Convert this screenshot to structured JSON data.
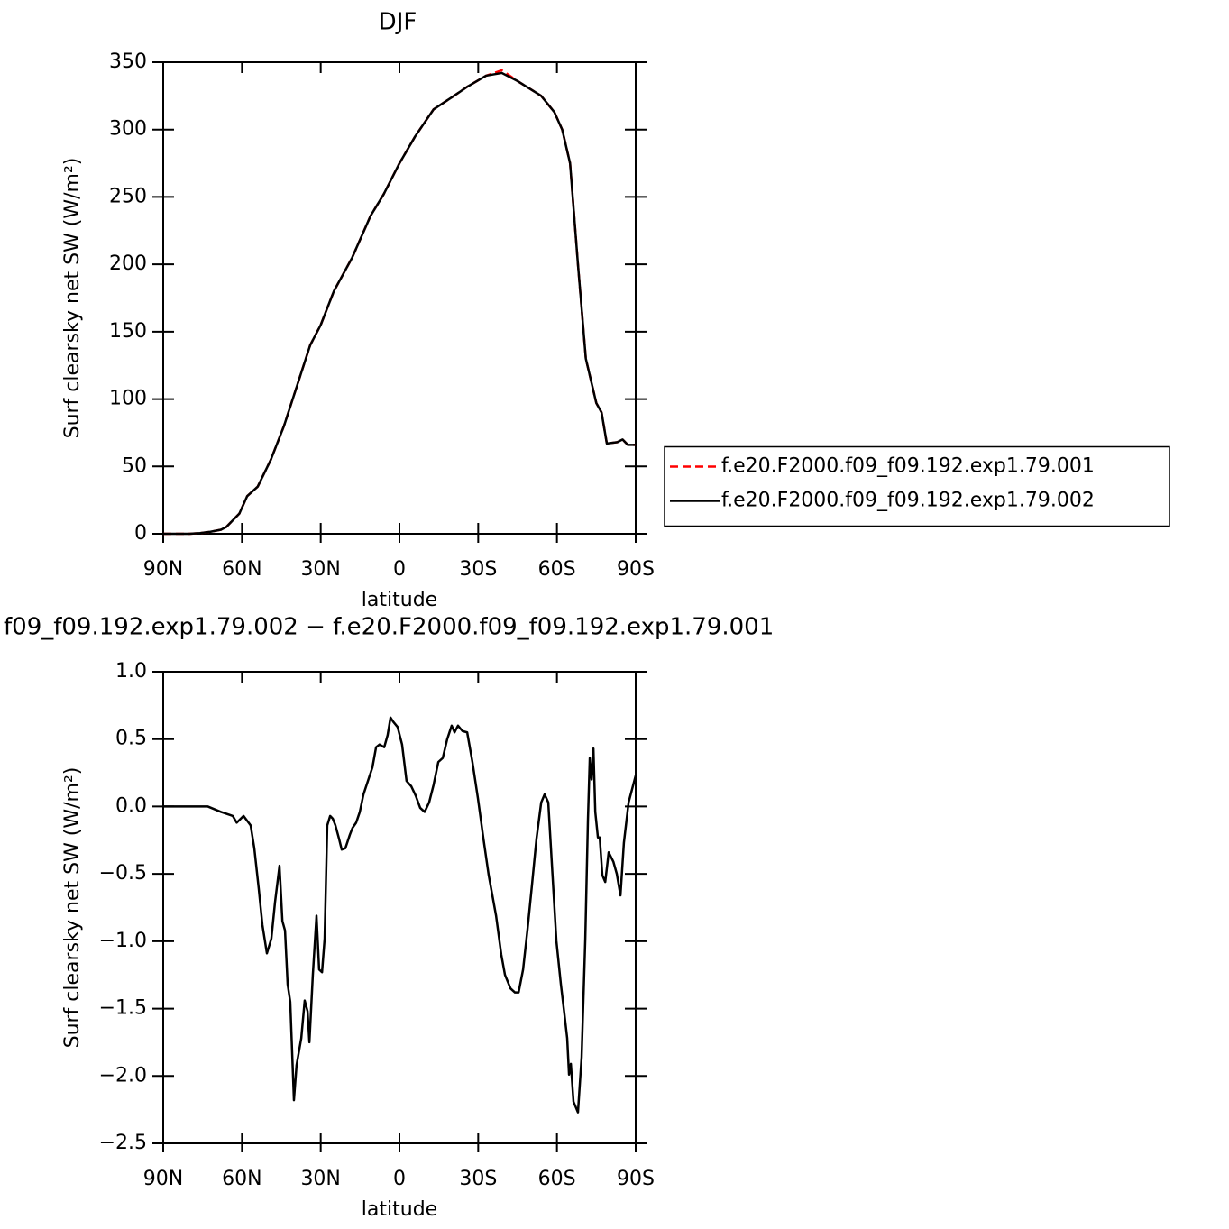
{
  "chart_data": [
    {
      "type": "line",
      "title": "DJF",
      "xlabel": "latitude",
      "ylabel": "Surf clearsky net SW (W/m²)",
      "x": [
        90,
        85,
        80,
        76,
        72,
        68,
        66,
        61,
        58,
        54,
        49,
        44,
        39,
        34,
        30,
        25,
        18,
        11,
        6,
        0,
        -6,
        -13,
        -20,
        -26,
        -33,
        -39,
        -45,
        -54,
        -59,
        -62,
        -65,
        -68,
        -71,
        -75,
        -77,
        -79,
        -83,
        -85,
        -87,
        -90
      ],
      "series": [
        {
          "name": "f.e20.F2000.f09_f09.192.exp1.79.001",
          "color": "#ff0000",
          "style": "dashed",
          "values": [
            0,
            0,
            0,
            0.5,
            1.5,
            3,
            5,
            15,
            28,
            35,
            55,
            80,
            110,
            140,
            155,
            180,
            205,
            236,
            252,
            275,
            295,
            315,
            324,
            332,
            340,
            344,
            336,
            325,
            313,
            300,
            275,
            200,
            130,
            97,
            90,
            67,
            68,
            70,
            66,
            66
          ]
        },
        {
          "name": "f.e20.F2000.f09_f09.192.exp1.79.002",
          "color": "#000000",
          "style": "solid",
          "values": [
            0,
            0,
            0,
            0.5,
            1.5,
            3,
            5,
            15,
            28,
            35,
            55,
            80,
            110,
            140,
            155,
            180,
            205,
            236,
            252,
            275,
            295,
            315,
            324,
            332,
            340,
            342,
            336,
            325,
            313,
            300,
            275,
            200,
            130,
            97,
            90,
            67,
            68,
            70,
            66,
            66
          ]
        }
      ],
      "xlim": [
        90,
        -90
      ],
      "xticks": [
        {
          "value": 90,
          "label": "90N"
        },
        {
          "value": 60,
          "label": "60N"
        },
        {
          "value": 30,
          "label": "30N"
        },
        0,
        {
          "value": -30,
          "label": "30S"
        },
        {
          "value": -60,
          "label": "60S"
        },
        {
          "value": -90,
          "label": "90S"
        }
      ],
      "ylim": [
        0,
        350
      ],
      "yticks": [
        0,
        50,
        100,
        150,
        200,
        250,
        300,
        350
      ],
      "legend": "right"
    },
    {
      "type": "line",
      "title": "f09_f09.192.exp1.79.002 − f.e20.F2000.f09_f09.192.exp1.79.001",
      "xlabel": "latitude",
      "ylabel": "Surf clearsky net SW (W/m²)",
      "x": [
        90,
        73,
        68,
        63.5,
        62,
        59.4,
        56.7,
        55.3,
        53.6,
        52.2,
        50.5,
        48.8,
        47.4,
        45.7,
        44.6,
        43.6,
        42.6,
        41.6,
        40.2,
        39.2,
        37.4,
        36.1,
        35,
        34.3,
        33,
        31.6,
        30.6,
        29.5,
        28.5,
        27.5,
        26.4,
        25.4,
        24.4,
        23,
        22,
        20.6,
        18.9,
        17.9,
        16.5,
        15.1,
        13.7,
        12,
        10.3,
        8.9,
        7.6,
        5.8,
        4.5,
        3.4,
        2.4,
        0.7,
        -1,
        -2.7,
        -4.5,
        -6.2,
        -7.9,
        -9.6,
        -11.3,
        -13,
        -14.8,
        -16.5,
        -18.2,
        -19.9,
        -21,
        -22.3,
        -24,
        -25.8,
        -27.8,
        -29.9,
        -32,
        -34,
        -36.8,
        -38.8,
        -40.2,
        -42.3,
        -44,
        -45.4,
        -47.1,
        -48.8,
        -50.5,
        -52.2,
        -54,
        -55.3,
        -56.7,
        -58.1,
        -59.8,
        -61.5,
        -62.9,
        -63.9,
        -64.6,
        -65.3,
        -66.3,
        -68,
        -69.4,
        -70.8,
        -71.8,
        -72.5,
        -73.2,
        -73.9,
        -74.6,
        -75.6,
        -76.3,
        -77.3,
        -78.4,
        -79.7,
        -81.5,
        -82.8,
        -84.2,
        -85.5,
        -87.3,
        -90
      ],
      "series": [
        {
          "color": "#000000",
          "style": "solid",
          "values": [
            0,
            0,
            -0.04,
            -0.07,
            -0.12,
            -0.07,
            -0.14,
            -0.31,
            -0.61,
            -0.88,
            -1.09,
            -0.98,
            -0.71,
            -0.44,
            -0.85,
            -0.92,
            -1.32,
            -1.45,
            -2.18,
            -1.92,
            -1.72,
            -1.44,
            -1.52,
            -1.75,
            -1.25,
            -0.81,
            -1.21,
            -1.23,
            -0.98,
            -0.14,
            -0.07,
            -0.09,
            -0.14,
            -0.24,
            -0.32,
            -0.31,
            -0.21,
            -0.16,
            -0.12,
            -0.04,
            0.09,
            0.19,
            0.29,
            0.44,
            0.46,
            0.44,
            0.53,
            0.66,
            0.63,
            0.59,
            0.46,
            0.19,
            0.15,
            0.08,
            -0.01,
            -0.04,
            0.03,
            0.16,
            0.33,
            0.36,
            0.5,
            0.6,
            0.55,
            0.6,
            0.56,
            0.55,
            0.33,
            0.06,
            -0.24,
            -0.51,
            -0.81,
            -1.1,
            -1.25,
            -1.35,
            -1.38,
            -1.38,
            -1.21,
            -0.91,
            -0.58,
            -0.24,
            0.03,
            0.09,
            0.03,
            -0.44,
            -1.0,
            -1.32,
            -1.55,
            -1.72,
            -1.99,
            -1.91,
            -2.19,
            -2.27,
            -1.86,
            -0.98,
            -0.1,
            0.36,
            0.2,
            0.43,
            -0.04,
            -0.23,
            -0.23,
            -0.51,
            -0.56,
            -0.34,
            -0.41,
            -0.5,
            -0.66,
            -0.27,
            0.03,
            0.23
          ]
        }
      ],
      "xlim": [
        90,
        -90
      ],
      "xticks": [
        {
          "value": 90,
          "label": "90N"
        },
        {
          "value": 60,
          "label": "60N"
        },
        {
          "value": 30,
          "label": "30N"
        },
        0,
        {
          "value": -30,
          "label": "30S"
        },
        {
          "value": -60,
          "label": "60S"
        },
        {
          "value": -90,
          "label": "90S"
        }
      ],
      "ylim": [
        -2.5,
        1
      ],
      "yticks": [
        {
          "value": -2.5,
          "label": "−2.5"
        },
        {
          "value": -2,
          "label": "−2.0"
        },
        {
          "value": -1.5,
          "label": "−1.5"
        },
        {
          "value": -1,
          "label": "−1.0"
        },
        {
          "value": -0.5,
          "label": "−0.5"
        },
        {
          "value": 0,
          "label": "0.0"
        },
        {
          "value": 0.5,
          "label": "0.5"
        },
        {
          "value": 1,
          "label": "1.0"
        }
      ]
    }
  ]
}
